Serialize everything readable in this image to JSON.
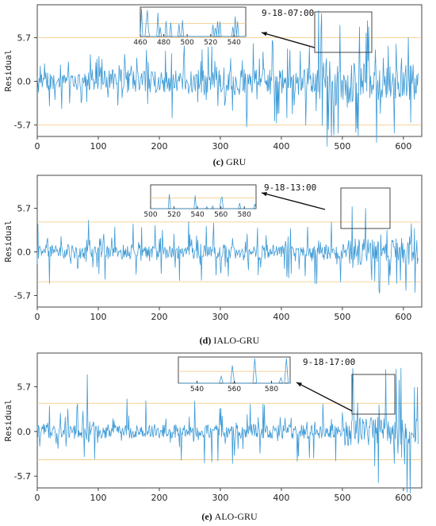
{
  "colors": {
    "series": "#3d9ad6",
    "threshold": "#f2c479",
    "frame": "#444444"
  },
  "chart_data": [
    {
      "type": "line",
      "caption_letter": "(c)",
      "caption_name": "GRU",
      "ylabel": "Residual",
      "xlim": [
        0,
        630
      ],
      "ylim": [
        -7.2,
        10.0
      ],
      "xticks": [
        "0",
        "100",
        "200",
        "300",
        "400",
        "500",
        "600"
      ],
      "yticks": [
        "5.7",
        "0.0",
        "-5.7"
      ],
      "thresholds": [
        5.7,
        -5.7
      ],
      "annotation": "9-18-07:00",
      "zoom_region": {
        "x": [
          460,
          550
        ],
        "y": [
          5.7,
          10.0
        ]
      },
      "zoom_ticks": [
        "460",
        "480",
        "500",
        "520",
        "540"
      ],
      "series": [
        {
          "segment": [
            0,
            100
          ],
          "amp": 2.0,
          "spikes": 3
        },
        {
          "segment": [
            100,
            300
          ],
          "amp": 2.5,
          "spikes": 4
        },
        {
          "segment": [
            300,
            460
          ],
          "amp": 3.0,
          "spikes": 5
        },
        {
          "segment": [
            460,
            560
          ],
          "amp": 5.0,
          "spikes": 8
        },
        {
          "segment": [
            560,
            625
          ],
          "amp": 4.2,
          "spikes": 7
        }
      ]
    },
    {
      "type": "line",
      "caption_letter": "(d)",
      "caption_name": "IALO-GRU",
      "ylabel": "Residual",
      "xlim": [
        0,
        630
      ],
      "ylim": [
        -7.2,
        10.0
      ],
      "xticks": [
        "0",
        "100",
        "200",
        "300",
        "400",
        "500",
        "600"
      ],
      "yticks": [
        "5.7",
        "0.0",
        "-5.7"
      ],
      "thresholds": [
        3.9,
        -3.9
      ],
      "annotation": "9-18-13:00",
      "zoom_region": {
        "x": [
          500,
          590
        ],
        "y": [
          3.9,
          8.0
        ]
      },
      "zoom_ticks": [
        "500",
        "520",
        "540",
        "560",
        "580"
      ],
      "series": [
        {
          "segment": [
            0,
            510
          ],
          "amp": 1.6,
          "spikes": 3.5
        },
        {
          "segment": [
            510,
            625
          ],
          "amp": 3.0,
          "spikes": 5.8
        }
      ]
    },
    {
      "type": "line",
      "caption_letter": "(e)",
      "caption_name": "ALO-GRU",
      "ylabel": "Residual",
      "xlim": [
        0,
        630
      ],
      "ylim": [
        -7.2,
        10.0
      ],
      "xticks": [
        "0",
        "100",
        "200",
        "300",
        "400",
        "500",
        "600"
      ],
      "yticks": [
        "5.7",
        "0.0",
        "-5.7"
      ],
      "thresholds": [
        3.6,
        -3.6
      ],
      "annotation": "9-18-17:00",
      "zoom_region": {
        "x": [
          530,
          590
        ],
        "y": [
          3.6,
          8.5
        ]
      },
      "zoom_ticks": [
        "540",
        "560",
        "580"
      ],
      "series": [
        {
          "segment": [
            0,
            80
          ],
          "amp": 1.6,
          "spikes": 3
        },
        {
          "segment": [
            80,
            90
          ],
          "amp": 2.5,
          "spikes": 6.5
        },
        {
          "segment": [
            90,
            500
          ],
          "amp": 1.5,
          "spikes": 3.5
        },
        {
          "segment": [
            500,
            625
          ],
          "amp": 3.0,
          "spikes": 7
        }
      ]
    }
  ]
}
